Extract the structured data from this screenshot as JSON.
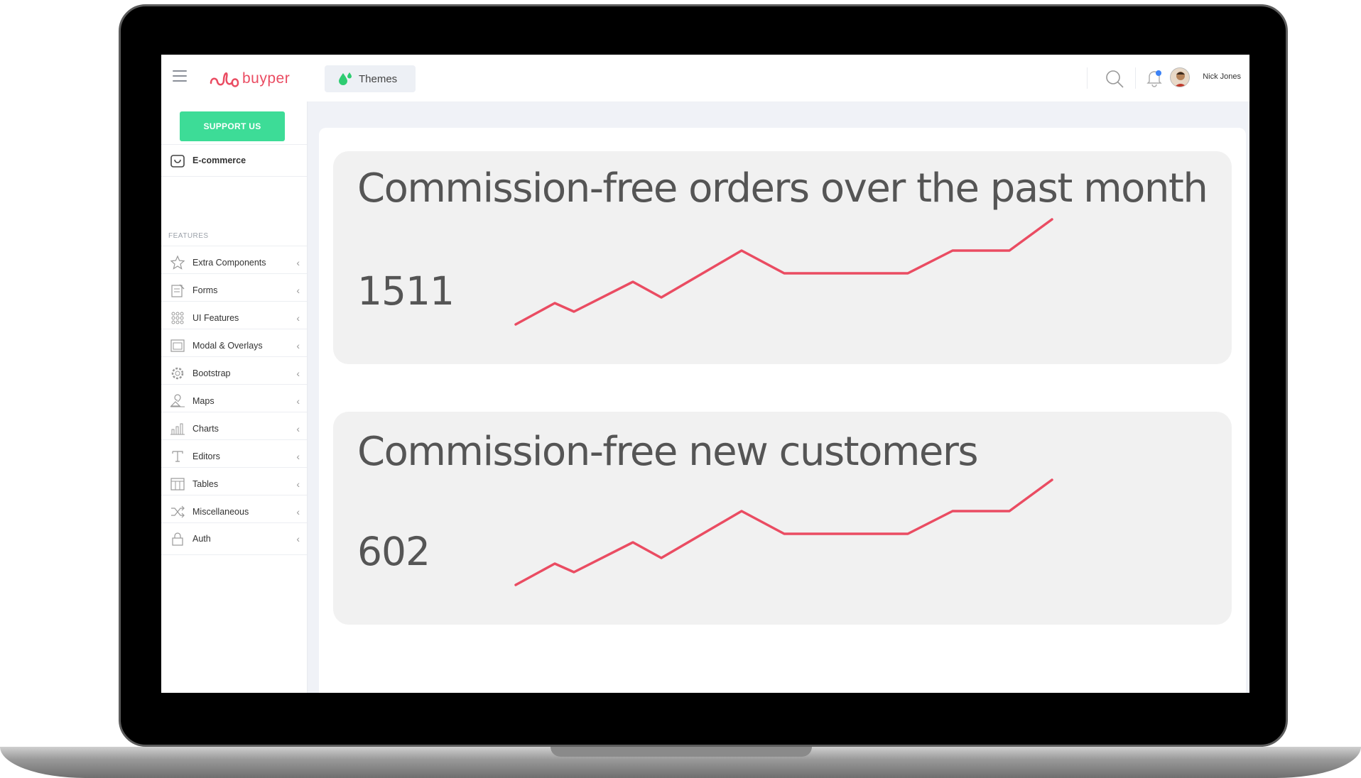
{
  "app": {
    "logo_text": "buyper",
    "themes_label": "Themes",
    "user_name": "Nick Jones",
    "accent_color": "#ea4c62",
    "support_color": "#3ddc97"
  },
  "sidebar": {
    "support_label": "SUPPORT US",
    "ecommerce_label": "E-commerce",
    "section_title": "FEATURES",
    "items": [
      {
        "label": "Extra Components",
        "icon": "star-icon"
      },
      {
        "label": "Forms",
        "icon": "form-icon"
      },
      {
        "label": "UI Features",
        "icon": "grid-dots-icon"
      },
      {
        "label": "Modal & Overlays",
        "icon": "window-icon"
      },
      {
        "label": "Bootstrap",
        "icon": "gear-icon"
      },
      {
        "label": "Maps",
        "icon": "map-icon"
      },
      {
        "label": "Charts",
        "icon": "chart-icon"
      },
      {
        "label": "Editors",
        "icon": "text-icon"
      },
      {
        "label": "Tables",
        "icon": "table-icon"
      },
      {
        "label": "Miscellaneous",
        "icon": "shuffle-icon"
      },
      {
        "label": "Auth",
        "icon": "lock-icon"
      }
    ]
  },
  "cards": [
    {
      "title": "Commission-free orders over the past month",
      "value": "1511"
    },
    {
      "title": "Commission-free new customers",
      "value": "602"
    }
  ],
  "chart_data": [
    {
      "type": "line",
      "series": [
        {
          "values": [
            0,
            15,
            9,
            30,
            19,
            52,
            36,
            36,
            36,
            52,
            52,
            74
          ]
        }
      ]
    },
    {
      "type": "line",
      "series": [
        {
          "values": [
            0,
            15,
            9,
            30,
            19,
            52,
            36,
            36,
            36,
            52,
            52,
            74
          ]
        }
      ]
    }
  ]
}
